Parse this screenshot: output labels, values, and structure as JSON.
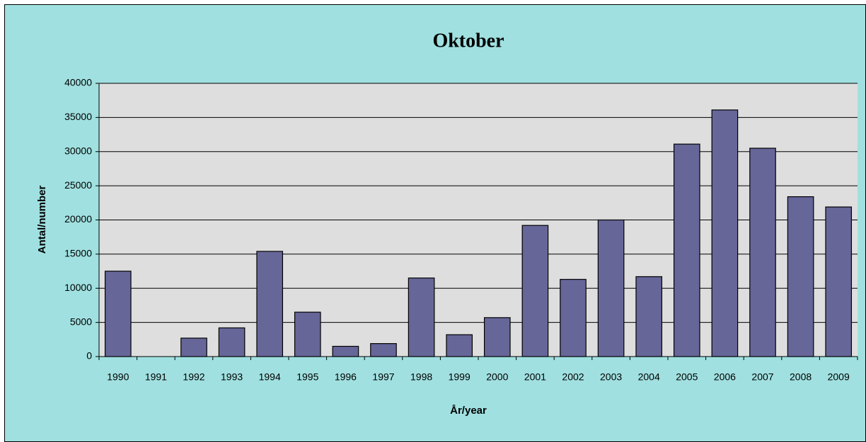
{
  "chart_data": {
    "type": "bar",
    "title": "Oktober",
    "x_label": "År/year",
    "y_label": "Antal/number",
    "categories": [
      "1990",
      "1991",
      "1992",
      "1993",
      "1994",
      "1995",
      "1996",
      "1997",
      "1998",
      "1999",
      "2000",
      "2001",
      "2002",
      "2003",
      "2004",
      "2005",
      "2006",
      "2007",
      "2008",
      "2009"
    ],
    "values": [
      12500,
      0,
      2700,
      4200,
      15400,
      6500,
      1500,
      1900,
      11500,
      3200,
      5700,
      19200,
      11300,
      20000,
      11700,
      31100,
      36100,
      30500,
      23400,
      21900
    ],
    "color": "#666699",
    "ylim": [
      0,
      40000
    ],
    "yticks": [
      0,
      5000,
      10000,
      15000,
      20000,
      25000,
      30000,
      35000,
      40000
    ],
    "grid": true
  }
}
